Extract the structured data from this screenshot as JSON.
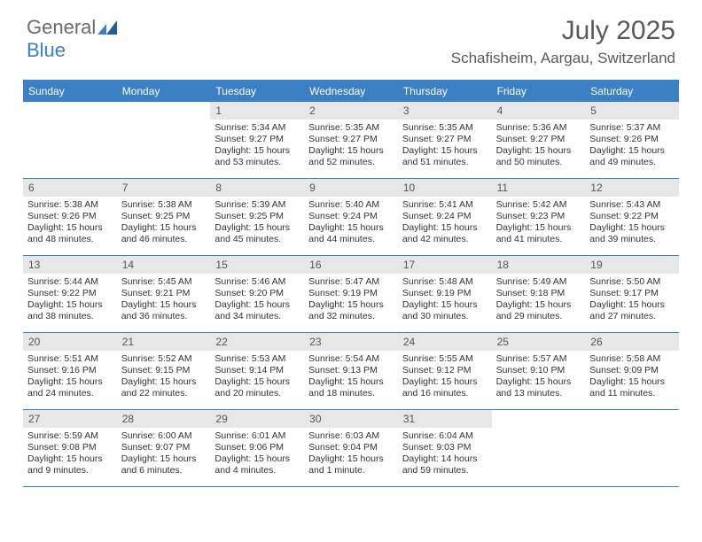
{
  "brand": {
    "general": "General",
    "blue": "Blue"
  },
  "title": "July 2025",
  "location": "Schafisheim, Aargau, Switzerland",
  "colors": {
    "accent": "#3b7fc4",
    "header_text": "#ffffff",
    "daynum_bg": "#e7e7e7",
    "text": "#333333",
    "title_text": "#5a5a5a"
  },
  "days_of_week": [
    "Sunday",
    "Monday",
    "Tuesday",
    "Wednesday",
    "Thursday",
    "Friday",
    "Saturday"
  ],
  "weeks": [
    [
      null,
      null,
      {
        "n": "1",
        "sunrise": "5:34 AM",
        "sunset": "9:27 PM",
        "daylight": "15 hours and 53 minutes."
      },
      {
        "n": "2",
        "sunrise": "5:35 AM",
        "sunset": "9:27 PM",
        "daylight": "15 hours and 52 minutes."
      },
      {
        "n": "3",
        "sunrise": "5:35 AM",
        "sunset": "9:27 PM",
        "daylight": "15 hours and 51 minutes."
      },
      {
        "n": "4",
        "sunrise": "5:36 AM",
        "sunset": "9:27 PM",
        "daylight": "15 hours and 50 minutes."
      },
      {
        "n": "5",
        "sunrise": "5:37 AM",
        "sunset": "9:26 PM",
        "daylight": "15 hours and 49 minutes."
      }
    ],
    [
      {
        "n": "6",
        "sunrise": "5:38 AM",
        "sunset": "9:26 PM",
        "daylight": "15 hours and 48 minutes."
      },
      {
        "n": "7",
        "sunrise": "5:38 AM",
        "sunset": "9:25 PM",
        "daylight": "15 hours and 46 minutes."
      },
      {
        "n": "8",
        "sunrise": "5:39 AM",
        "sunset": "9:25 PM",
        "daylight": "15 hours and 45 minutes."
      },
      {
        "n": "9",
        "sunrise": "5:40 AM",
        "sunset": "9:24 PM",
        "daylight": "15 hours and 44 minutes."
      },
      {
        "n": "10",
        "sunrise": "5:41 AM",
        "sunset": "9:24 PM",
        "daylight": "15 hours and 42 minutes."
      },
      {
        "n": "11",
        "sunrise": "5:42 AM",
        "sunset": "9:23 PM",
        "daylight": "15 hours and 41 minutes."
      },
      {
        "n": "12",
        "sunrise": "5:43 AM",
        "sunset": "9:22 PM",
        "daylight": "15 hours and 39 minutes."
      }
    ],
    [
      {
        "n": "13",
        "sunrise": "5:44 AM",
        "sunset": "9:22 PM",
        "daylight": "15 hours and 38 minutes."
      },
      {
        "n": "14",
        "sunrise": "5:45 AM",
        "sunset": "9:21 PM",
        "daylight": "15 hours and 36 minutes."
      },
      {
        "n": "15",
        "sunrise": "5:46 AM",
        "sunset": "9:20 PM",
        "daylight": "15 hours and 34 minutes."
      },
      {
        "n": "16",
        "sunrise": "5:47 AM",
        "sunset": "9:19 PM",
        "daylight": "15 hours and 32 minutes."
      },
      {
        "n": "17",
        "sunrise": "5:48 AM",
        "sunset": "9:19 PM",
        "daylight": "15 hours and 30 minutes."
      },
      {
        "n": "18",
        "sunrise": "5:49 AM",
        "sunset": "9:18 PM",
        "daylight": "15 hours and 29 minutes."
      },
      {
        "n": "19",
        "sunrise": "5:50 AM",
        "sunset": "9:17 PM",
        "daylight": "15 hours and 27 minutes."
      }
    ],
    [
      {
        "n": "20",
        "sunrise": "5:51 AM",
        "sunset": "9:16 PM",
        "daylight": "15 hours and 24 minutes."
      },
      {
        "n": "21",
        "sunrise": "5:52 AM",
        "sunset": "9:15 PM",
        "daylight": "15 hours and 22 minutes."
      },
      {
        "n": "22",
        "sunrise": "5:53 AM",
        "sunset": "9:14 PM",
        "daylight": "15 hours and 20 minutes."
      },
      {
        "n": "23",
        "sunrise": "5:54 AM",
        "sunset": "9:13 PM",
        "daylight": "15 hours and 18 minutes."
      },
      {
        "n": "24",
        "sunrise": "5:55 AM",
        "sunset": "9:12 PM",
        "daylight": "15 hours and 16 minutes."
      },
      {
        "n": "25",
        "sunrise": "5:57 AM",
        "sunset": "9:10 PM",
        "daylight": "15 hours and 13 minutes."
      },
      {
        "n": "26",
        "sunrise": "5:58 AM",
        "sunset": "9:09 PM",
        "daylight": "15 hours and 11 minutes."
      }
    ],
    [
      {
        "n": "27",
        "sunrise": "5:59 AM",
        "sunset": "9:08 PM",
        "daylight": "15 hours and 9 minutes."
      },
      {
        "n": "28",
        "sunrise": "6:00 AM",
        "sunset": "9:07 PM",
        "daylight": "15 hours and 6 minutes."
      },
      {
        "n": "29",
        "sunrise": "6:01 AM",
        "sunset": "9:06 PM",
        "daylight": "15 hours and 4 minutes."
      },
      {
        "n": "30",
        "sunrise": "6:03 AM",
        "sunset": "9:04 PM",
        "daylight": "15 hours and 1 minute."
      },
      {
        "n": "31",
        "sunrise": "6:04 AM",
        "sunset": "9:03 PM",
        "daylight": "14 hours and 59 minutes."
      },
      null,
      null
    ]
  ],
  "labels": {
    "sunrise": "Sunrise:",
    "sunset": "Sunset:",
    "daylight": "Daylight:"
  }
}
